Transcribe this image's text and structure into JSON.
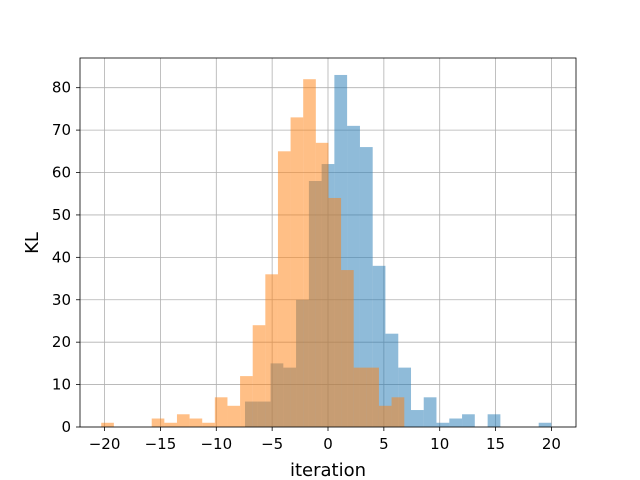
{
  "chart_data": {
    "type": "bar",
    "subtype": "histogram",
    "title": "",
    "xlabel": "iteration",
    "ylabel": "KL",
    "xlim": [
      -22.2,
      22.2
    ],
    "ylim": [
      0,
      87
    ],
    "xticks": [
      -20,
      -15,
      -10,
      -5,
      0,
      5,
      10,
      15,
      20
    ],
    "yticks": [
      0,
      10,
      20,
      30,
      40,
      50,
      60,
      70,
      80
    ],
    "grid": true,
    "alpha": 0.5,
    "colors": [
      "#1f77b4",
      "#ff7f0e"
    ],
    "series": [
      {
        "bin_edges": [
          -20,
          -18.86,
          -17.71,
          -16.57,
          -15.43,
          -14.29,
          -13.14,
          -12,
          -10.86,
          -9.71,
          -8.57,
          -7.43,
          -6.29,
          -5.14,
          -4,
          -2.86,
          -1.71,
          -0.57,
          0.57,
          1.71,
          2.86,
          4,
          5.14,
          6.29,
          7.43,
          8.57,
          9.71,
          10.86,
          12,
          13.14,
          14.29,
          15.43,
          16.57,
          17.71,
          18.86,
          20
        ],
        "values": [
          0,
          0,
          0,
          0,
          0,
          0,
          0,
          0,
          0,
          0,
          0,
          6,
          6,
          15,
          14,
          30,
          58,
          62,
          83,
          71,
          66,
          38,
          22,
          14,
          4,
          7,
          1,
          2,
          3,
          0,
          3,
          0,
          0,
          0,
          1
        ]
      },
      {
        "bin_edges": [
          -20.3,
          -19.17,
          -18.04,
          -16.91,
          -15.78,
          -14.65,
          -13.52,
          -12.39,
          -11.26,
          -10.13,
          -9,
          -7.87,
          -6.74,
          -5.61,
          -4.48,
          -3.35,
          -2.22,
          -1.09,
          0.04,
          1.17,
          2.3,
          3.43,
          4.56,
          5.69,
          6.83
        ],
        "values": [
          1,
          0,
          0,
          0,
          2,
          1,
          3,
          2,
          1,
          7,
          5,
          12,
          24,
          36,
          65,
          73,
          82,
          67,
          54,
          37,
          14,
          14,
          5,
          7
        ]
      }
    ]
  }
}
